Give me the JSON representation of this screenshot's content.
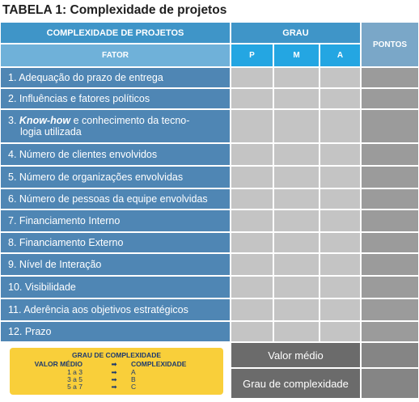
{
  "title": "TABELA 1: Complexidade de projetos",
  "header": {
    "complexity": "COMPLEXIDADE DE PROJETOS",
    "grau": "GRAU",
    "pontos": "PONTOS",
    "fator": "FATOR",
    "p": "P",
    "m": "M",
    "a": "A"
  },
  "factors": [
    "1. Adequação do prazo de entrega",
    "2. Influências e fatores políticos",
    "3.",
    "4. Número de clientes envolvidos",
    "5. Número de organizações envolvidas",
    "6. Número de pessoas da equipe envolvidas",
    "7. Financiamento Interno",
    "8. Financiamento Externo",
    "9. Nível de Interação",
    "10. Visibilidade",
    "11. Aderência aos objetivos estratégicos",
    "12. Prazo"
  ],
  "factor3": {
    "prefix": "3. ",
    "italic": "Know-how",
    "rest_line1": " e conhecimento da tecno-",
    "line2": "logia utilizada"
  },
  "legend": {
    "title": "GRAU DE COMPLEXIDADE",
    "col1_header": "VALOR MÉDIO",
    "arrow": "➡",
    "col2_header": "COMPLEXIDADE",
    "rows": [
      {
        "range": "1 a 3",
        "grade": "A"
      },
      {
        "range": "3 a 5",
        "grade": "B"
      },
      {
        "range": "5 a 7",
        "grade": "C"
      }
    ]
  },
  "summary": {
    "valor_medio": "Valor médio",
    "grau_complexidade": "Grau de complexidade"
  }
}
